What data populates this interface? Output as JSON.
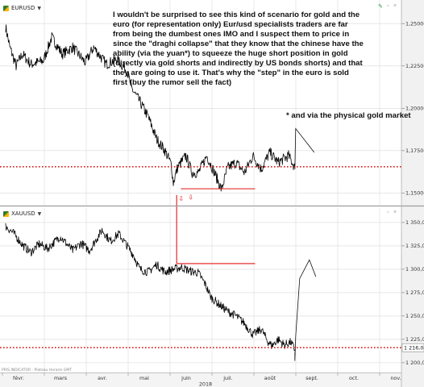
{
  "chart_data": [
    {
      "type": "line",
      "symbol": "EURUSD",
      "y_ticks": [
        1.15,
        1.175,
        1.2,
        1.225,
        1.25
      ],
      "y_tick_labels": [
        "1,15000",
        "1,17500",
        "1,20000",
        "1,22500",
        "1,25000"
      ],
      "ylim": [
        1.144,
        1.262
      ],
      "support_level": 1.1655,
      "key_points": [
        {
          "t": 0.0,
          "v": 1.248
        },
        {
          "t": 0.1,
          "v": 1.236
        },
        {
          "t": 0.25,
          "v": 1.225
        },
        {
          "t": 0.4,
          "v": 1.232
        },
        {
          "t": 0.6,
          "v": 1.226
        },
        {
          "t": 0.9,
          "v": 1.228
        },
        {
          "t": 1.1,
          "v": 1.242
        },
        {
          "t": 1.35,
          "v": 1.232
        },
        {
          "t": 1.6,
          "v": 1.236
        },
        {
          "t": 1.9,
          "v": 1.227
        },
        {
          "t": 2.1,
          "v": 1.236
        },
        {
          "t": 2.4,
          "v": 1.226
        },
        {
          "t": 2.65,
          "v": 1.229
        },
        {
          "t": 2.9,
          "v": 1.222
        },
        {
          "t": 3.0,
          "v": 1.212
        },
        {
          "t": 3.2,
          "v": 1.204
        },
        {
          "t": 3.4,
          "v": 1.195
        },
        {
          "t": 3.6,
          "v": 1.182
        },
        {
          "t": 3.8,
          "v": 1.175
        },
        {
          "t": 3.95,
          "v": 1.167
        },
        {
          "t": 4.0,
          "v": 1.156
        },
        {
          "t": 4.1,
          "v": 1.165
        },
        {
          "t": 4.3,
          "v": 1.172
        },
        {
          "t": 4.45,
          "v": 1.162
        },
        {
          "t": 4.6,
          "v": 1.162
        },
        {
          "t": 4.8,
          "v": 1.172
        },
        {
          "t": 5.0,
          "v": 1.161
        },
        {
          "t": 5.15,
          "v": 1.152
        },
        {
          "t": 5.3,
          "v": 1.165
        },
        {
          "t": 5.5,
          "v": 1.168
        },
        {
          "t": 5.7,
          "v": 1.162
        },
        {
          "t": 5.9,
          "v": 1.172
        },
        {
          "t": 6.1,
          "v": 1.164
        },
        {
          "t": 6.3,
          "v": 1.174
        },
        {
          "t": 6.5,
          "v": 1.168
        },
        {
          "t": 6.75,
          "v": 1.172
        },
        {
          "t": 6.9,
          "v": 1.165
        }
      ]
    },
    {
      "type": "line",
      "symbol": "XAUUSD",
      "y_ticks": [
        1200,
        1225,
        1250,
        1275,
        1300,
        1325,
        1350
      ],
      "y_tick_labels": [
        "1 200,00",
        "1 225,00",
        "1 250,00",
        "1 275,00",
        "1 300,00",
        "1 325,00",
        "1 350,00"
      ],
      "ylim": [
        1193,
        1362
      ],
      "support_level": 1216.08,
      "last_price_label": "1 216,08",
      "key_points": [
        {
          "t": 0.0,
          "v": 1346
        },
        {
          "t": 0.2,
          "v": 1338
        },
        {
          "t": 0.4,
          "v": 1326
        },
        {
          "t": 0.6,
          "v": 1318
        },
        {
          "t": 0.8,
          "v": 1327
        },
        {
          "t": 1.0,
          "v": 1322
        },
        {
          "t": 1.3,
          "v": 1335
        },
        {
          "t": 1.6,
          "v": 1320
        },
        {
          "t": 1.8,
          "v": 1328
        },
        {
          "t": 2.0,
          "v": 1320
        },
        {
          "t": 2.3,
          "v": 1342
        },
        {
          "t": 2.5,
          "v": 1330
        },
        {
          "t": 2.7,
          "v": 1338
        },
        {
          "t": 2.9,
          "v": 1325
        },
        {
          "t": 3.05,
          "v": 1315
        },
        {
          "t": 3.2,
          "v": 1300
        },
        {
          "t": 3.4,
          "v": 1297
        },
        {
          "t": 3.6,
          "v": 1305
        },
        {
          "t": 3.8,
          "v": 1297
        },
        {
          "t": 4.0,
          "v": 1300
        },
        {
          "t": 4.2,
          "v": 1302
        },
        {
          "t": 4.4,
          "v": 1298
        },
        {
          "t": 4.6,
          "v": 1296
        },
        {
          "t": 4.75,
          "v": 1285
        },
        {
          "t": 4.9,
          "v": 1270
        },
        {
          "t": 5.1,
          "v": 1262
        },
        {
          "t": 5.3,
          "v": 1255
        },
        {
          "t": 5.5,
          "v": 1250
        },
        {
          "t": 5.7,
          "v": 1242
        },
        {
          "t": 5.9,
          "v": 1230
        },
        {
          "t": 6.1,
          "v": 1236
        },
        {
          "t": 6.25,
          "v": 1223
        },
        {
          "t": 6.35,
          "v": 1218
        },
        {
          "t": 6.5,
          "v": 1225
        },
        {
          "t": 6.65,
          "v": 1219
        },
        {
          "t": 6.8,
          "v": 1222
        },
        {
          "t": 6.9,
          "v": 1214
        }
      ]
    }
  ],
  "x_axis": {
    "months": [
      "févr.",
      "mars",
      "avr.",
      "mai",
      "juin",
      "juil.",
      "août",
      "sept.",
      "oct.",
      "nov."
    ],
    "year": "2018"
  },
  "annotations": {
    "main_text": "I wouldn't be surprised to see this kind of scenario for gold and the euro (for representation only) Eur/usd specialists traders are far from being the dumbest ones IMO and I suspect them to price in since the \"draghi collapse\" that they know that the chinese have the ability (via the yuan*) to squeeze the huge short position in gold (directly via gold shorts and indirectly by US bonds shorts) and that they are going to use it. That's why the \"step\" in the euro is sold first (buy the rumor sell the fact)",
    "side_text": "* and via the physical gold market"
  },
  "footer": {
    "left_text": "PRIS.INDICATOR · Plateau Horaire GMT"
  },
  "colors": {
    "price": "#000000",
    "support": "#d81b1b",
    "annotation": "#e01515",
    "grid": "#d9d9d9",
    "axis_panel": "#f1f1f1"
  },
  "icons": {
    "panel_symbol": "currency-pair-icon",
    "panel_menu": "caret-down-icon",
    "edit": "pencil-icon"
  }
}
